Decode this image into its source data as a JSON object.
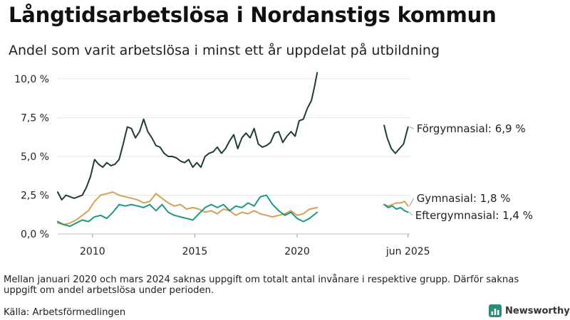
{
  "title": "Långtidsarbetslösa i Nordanstigs kommun",
  "subtitle": "Andel som varit arbetslösa i minst ett år uppdelat på utbildning",
  "note": "Mellan januari 2020 och mars 2024 saknas uppgift om totalt antal invånare i respektive grupp. Därför saknas uppgift om andel arbetslösa under perioden.",
  "source": "Källa: Arbetsförmedlingen",
  "brand": "Newsworthy",
  "colors": {
    "forgymnasial": "#1f3d35",
    "gymnasial": "#d4a254",
    "eftergymnasial": "#1a9a82",
    "brand": "#2a8f7a"
  },
  "chart_data": {
    "type": "line",
    "title": "Långtidsarbetslösa i Nordanstigs kommun",
    "ylim": [
      0,
      10.5
    ],
    "xlim": [
      2008.3,
      2025.5
    ],
    "yticks": [
      {
        "value": 0,
        "label": "0,0 %"
      },
      {
        "value": 2.5,
        "label": "2,5 %"
      },
      {
        "value": 5,
        "label": "5,0 %"
      },
      {
        "value": 7.5,
        "label": "7,5 %"
      },
      {
        "value": 10,
        "label": "10,0 %"
      }
    ],
    "xticks": [
      {
        "value": 2010,
        "label": "2010"
      },
      {
        "value": 2015,
        "label": "2015"
      },
      {
        "value": 2020,
        "label": "2020"
      },
      {
        "value": 2025.42,
        "label": "jun 2025"
      }
    ],
    "series": [
      {
        "name": "Förgymnasial",
        "label": "Förgymnasial: 6,9 %",
        "color_key": "forgymnasial",
        "segments": [
          {
            "x": [
              2008.3,
              2008.5,
              2008.7,
              2008.9,
              2009.1,
              2009.3,
              2009.5,
              2009.7,
              2009.9,
              2010.1,
              2010.3,
              2010.5,
              2010.7,
              2010.9,
              2011.1,
              2011.3,
              2011.5,
              2011.7,
              2011.9,
              2012.1,
              2012.3,
              2012.5,
              2012.7,
              2012.9,
              2013.1,
              2013.3,
              2013.5,
              2013.7,
              2013.9,
              2014.1,
              2014.3,
              2014.5,
              2014.7,
              2014.9,
              2015.1,
              2015.3,
              2015.5,
              2015.7,
              2015.9,
              2016.1,
              2016.3,
              2016.5,
              2016.7,
              2016.9,
              2017.1,
              2017.3,
              2017.5,
              2017.7,
              2017.9,
              2018.1,
              2018.3,
              2018.5,
              2018.7,
              2018.9,
              2019.1,
              2019.3,
              2019.5,
              2019.7,
              2019.9,
              2020.1,
              2020.3,
              2020.5,
              2020.7,
              2020.85,
              2020.98
            ],
            "y": [
              2.7,
              2.2,
              2.5,
              2.4,
              2.3,
              2.4,
              2.5,
              3.0,
              3.7,
              4.8,
              4.5,
              4.3,
              4.6,
              4.4,
              4.5,
              4.8,
              5.8,
              6.9,
              6.8,
              6.2,
              6.6,
              7.4,
              6.6,
              6.2,
              5.7,
              5.6,
              5.2,
              5.0,
              5.0,
              4.9,
              4.7,
              4.6,
              4.8,
              4.3,
              4.6,
              4.3,
              5.0,
              5.2,
              5.3,
              5.6,
              5.2,
              5.5,
              6.0,
              6.4,
              5.5,
              6.2,
              6.5,
              6.2,
              6.8,
              5.8,
              5.6,
              5.7,
              5.9,
              6.5,
              6.6,
              5.9,
              6.3,
              6.6,
              6.3,
              7.3,
              7.4,
              8.1,
              8.6,
              9.5,
              10.4
            ]
          },
          {
            "x": [
              2024.25,
              2024.4,
              2024.6,
              2024.8,
              2025.0,
              2025.2,
              2025.42
            ],
            "y": [
              7.0,
              6.2,
              5.5,
              5.2,
              5.5,
              5.8,
              6.9
            ]
          }
        ]
      },
      {
        "name": "Gymnasial",
        "label": "Gymnasial: 1,8 %",
        "color_key": "gymnasial",
        "segments": [
          {
            "x": [
              2008.3,
              2008.6,
              2008.9,
              2009.2,
              2009.5,
              2009.8,
              2010.1,
              2010.4,
              2010.7,
              2011.0,
              2011.3,
              2011.6,
              2011.9,
              2012.2,
              2012.5,
              2012.8,
              2013.1,
              2013.4,
              2013.7,
              2014.0,
              2014.3,
              2014.6,
              2014.9,
              2015.2,
              2015.5,
              2015.8,
              2016.1,
              2016.4,
              2016.7,
              2017.0,
              2017.3,
              2017.6,
              2017.9,
              2018.2,
              2018.5,
              2018.8,
              2019.1,
              2019.4,
              2019.7,
              2020.0,
              2020.3,
              2020.6,
              2020.98
            ],
            "y": [
              0.7,
              0.6,
              0.7,
              0.9,
              1.2,
              1.5,
              2.1,
              2.5,
              2.6,
              2.7,
              2.5,
              2.4,
              2.3,
              2.2,
              2.0,
              2.1,
              2.6,
              2.3,
              2.0,
              1.8,
              1.9,
              1.6,
              1.7,
              1.6,
              1.4,
              1.5,
              1.3,
              1.6,
              1.5,
              1.2,
              1.4,
              1.3,
              1.5,
              1.3,
              1.2,
              1.1,
              1.2,
              1.3,
              1.5,
              1.2,
              1.3,
              1.6,
              1.7
            ]
          },
          {
            "x": [
              2024.25,
              2024.45,
              2024.65,
              2024.85,
              2025.05,
              2025.25,
              2025.42
            ],
            "y": [
              1.9,
              1.8,
              1.9,
              2.0,
              2.0,
              2.1,
              1.8
            ]
          }
        ]
      },
      {
        "name": "Eftergymnasial",
        "label": "Eftergymnasial: 1,4 %",
        "color_key": "eftergymnasial",
        "segments": [
          {
            "x": [
              2008.3,
              2008.6,
              2008.9,
              2009.2,
              2009.5,
              2009.8,
              2010.1,
              2010.4,
              2010.7,
              2011.0,
              2011.3,
              2011.6,
              2011.9,
              2012.2,
              2012.5,
              2012.8,
              2013.1,
              2013.4,
              2013.7,
              2014.0,
              2014.3,
              2014.6,
              2014.9,
              2015.2,
              2015.5,
              2015.8,
              2016.1,
              2016.4,
              2016.7,
              2017.0,
              2017.3,
              2017.6,
              2017.9,
              2018.2,
              2018.5,
              2018.8,
              2019.1,
              2019.4,
              2019.7,
              2020.0,
              2020.3,
              2020.6,
              2020.98
            ],
            "y": [
              0.8,
              0.6,
              0.5,
              0.7,
              0.9,
              0.8,
              1.1,
              1.2,
              1.0,
              1.4,
              1.9,
              1.8,
              1.9,
              1.8,
              1.7,
              1.9,
              1.5,
              1.9,
              1.4,
              1.2,
              1.1,
              1.0,
              0.9,
              1.3,
              1.7,
              1.9,
              1.7,
              1.9,
              1.5,
              1.8,
              1.7,
              2.0,
              1.8,
              2.4,
              2.5,
              1.9,
              1.5,
              1.2,
              1.4,
              1.0,
              0.8,
              1.0,
              1.4
            ]
          },
          {
            "x": [
              2024.25,
              2024.45,
              2024.65,
              2024.85,
              2025.05,
              2025.25,
              2025.42
            ],
            "y": [
              1.9,
              1.7,
              1.8,
              1.6,
              1.7,
              1.5,
              1.4
            ]
          }
        ]
      }
    ]
  }
}
